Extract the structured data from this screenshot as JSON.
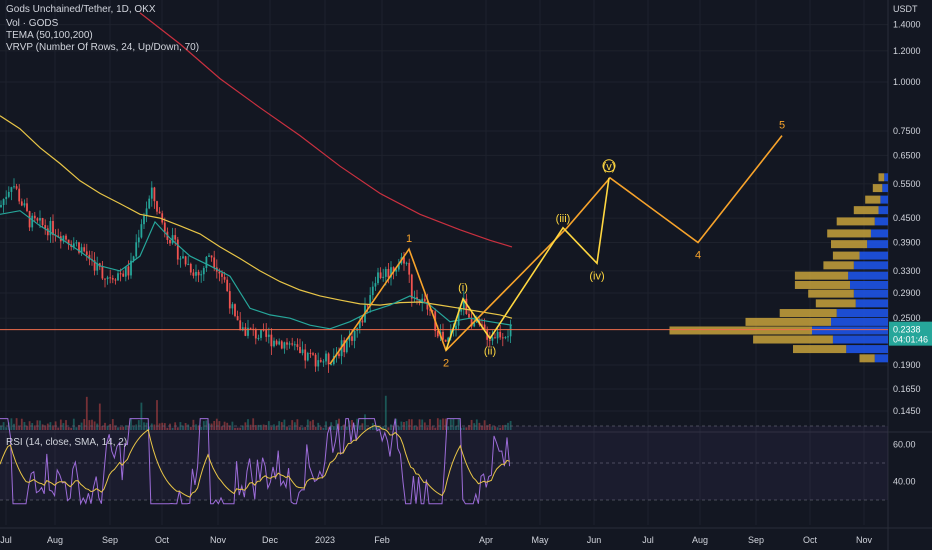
{
  "header": {
    "symbol_line": "Gods Unchained/Tether, 1D, OKX",
    "volume_label": "Vol · GODS",
    "tema_label": "TEMA (50,100,200)",
    "vrvp_label": "VRVP (Number Of Rows, 24, Up/Down, 70)",
    "rsi_label": "RSI (14, close, SMA, 14, 2)",
    "price_unit": "USDT"
  },
  "colors": {
    "background": "#131722",
    "grid": "#1e222d",
    "candle_up": "#26a69a",
    "candle_down": "#ef5350",
    "tema_fast": "#26a69a",
    "tema_mid": "#e8c547",
    "tema_slow": "#c9303f",
    "wave_primary": "#f7a32b",
    "wave_minor": "#ffd740",
    "price_line": "#ef6c4b",
    "rsi_line": "#9c6cd8",
    "rsi_sma": "#e8c547",
    "vp_up": "#1e53e5",
    "vp_down": "#c8a23b"
  },
  "chart_data": {
    "type": "candlestick",
    "price_axis": {
      "scale": "log",
      "ticks": [
        "1.4000",
        "1.2000",
        "1.0000",
        "0.7500",
        "0.6500",
        "0.5500",
        "0.4500",
        "0.3900",
        "0.3300",
        "0.2900",
        "0.2500",
        "0.1900",
        "0.1650",
        "0.1450"
      ],
      "current_price": "0.2338",
      "countdown": "04:01:46"
    },
    "time_axis": {
      "ticks": [
        "Jul",
        "Aug",
        "Sep",
        "Oct",
        "Nov",
        "Dec",
        "2023",
        "Feb",
        "Apr",
        "May",
        "Jun",
        "Jul",
        "Aug",
        "Sep",
        "Oct",
        "Nov"
      ]
    },
    "rsi_axis": {
      "ticks": [
        "60.00",
        "40.00"
      ]
    },
    "tema_fast": [
      [
        0,
        0.46
      ],
      [
        20,
        0.47
      ],
      [
        40,
        0.43
      ],
      [
        60,
        0.4
      ],
      [
        80,
        0.37
      ],
      [
        100,
        0.34
      ],
      [
        120,
        0.33
      ],
      [
        140,
        0.36
      ],
      [
        155,
        0.44
      ],
      [
        170,
        0.4
      ],
      [
        190,
        0.36
      ],
      [
        210,
        0.34
      ],
      [
        230,
        0.32
      ],
      [
        250,
        0.265
      ],
      [
        270,
        0.255
      ],
      [
        290,
        0.25
      ],
      [
        310,
        0.24
      ],
      [
        330,
        0.235
      ],
      [
        350,
        0.245
      ],
      [
        370,
        0.26
      ],
      [
        390,
        0.27
      ],
      [
        410,
        0.285
      ],
      [
        430,
        0.27
      ],
      [
        450,
        0.245
      ],
      [
        470,
        0.25
      ],
      [
        490,
        0.245
      ],
      [
        512,
        0.24
      ]
    ],
    "tema_mid": [
      [
        0,
        0.82
      ],
      [
        20,
        0.76
      ],
      [
        40,
        0.68
      ],
      [
        60,
        0.62
      ],
      [
        80,
        0.56
      ],
      [
        100,
        0.52
      ],
      [
        120,
        0.49
      ],
      [
        140,
        0.46
      ],
      [
        160,
        0.45
      ],
      [
        180,
        0.43
      ],
      [
        200,
        0.41
      ],
      [
        220,
        0.38
      ],
      [
        240,
        0.355
      ],
      [
        260,
        0.33
      ],
      [
        280,
        0.31
      ],
      [
        300,
        0.295
      ],
      [
        320,
        0.285
      ],
      [
        340,
        0.278
      ],
      [
        360,
        0.272
      ],
      [
        380,
        0.27
      ],
      [
        400,
        0.274
      ],
      [
        420,
        0.275
      ],
      [
        440,
        0.27
      ],
      [
        460,
        0.265
      ],
      [
        480,
        0.26
      ],
      [
        500,
        0.255
      ],
      [
        512,
        0.25
      ]
    ],
    "tema_slow": [
      [
        140,
        1.5
      ],
      [
        180,
        1.25
      ],
      [
        220,
        1.02
      ],
      [
        260,
        0.86
      ],
      [
        300,
        0.73
      ],
      [
        340,
        0.61
      ],
      [
        380,
        0.52
      ],
      [
        420,
        0.46
      ],
      [
        460,
        0.42
      ],
      [
        490,
        0.395
      ],
      [
        512,
        0.38
      ]
    ],
    "elliott_primary": [
      {
        "label": "",
        "x": 330,
        "y": 0.191
      },
      {
        "label": "1",
        "x": 409,
        "y": 0.375
      },
      {
        "label": "2",
        "x": 446,
        "y": 0.207
      },
      {
        "label": "",
        "x": 567,
        "y": 0.425
      },
      {
        "label": "",
        "x": 610,
        "y": 0.57
      },
      {
        "label": "4",
        "x": 698,
        "y": 0.39
      },
      {
        "label": "5",
        "x": 782,
        "y": 0.73
      }
    ],
    "elliott_minor": [
      {
        "label": "",
        "x": 446,
        "y": 0.207
      },
      {
        "label": "(i)",
        "x": 463,
        "y": 0.28
      },
      {
        "label": "(ii)",
        "x": 490,
        "y": 0.222
      },
      {
        "label": "(iii)",
        "x": 563,
        "y": 0.425
      },
      {
        "label": "(iv)",
        "x": 597,
        "y": 0.345
      },
      {
        "label": "(v)",
        "x": 609,
        "y": 0.57
      }
    ],
    "volume_profile": [
      {
        "price": 0.57,
        "up": 4,
        "down": 6
      },
      {
        "price": 0.535,
        "up": 6,
        "down": 10
      },
      {
        "price": 0.5,
        "up": 8,
        "down": 16
      },
      {
        "price": 0.47,
        "up": 10,
        "down": 26
      },
      {
        "price": 0.44,
        "up": 14,
        "down": 40
      },
      {
        "price": 0.41,
        "up": 18,
        "down": 46
      },
      {
        "price": 0.385,
        "up": 22,
        "down": 38
      },
      {
        "price": 0.36,
        "up": 30,
        "down": 28
      },
      {
        "price": 0.34,
        "up": 36,
        "down": 32
      },
      {
        "price": 0.32,
        "up": 42,
        "down": 56
      },
      {
        "price": 0.303,
        "up": 40,
        "down": 58
      },
      {
        "price": 0.288,
        "up": 36,
        "down": 48
      },
      {
        "price": 0.272,
        "up": 34,
        "down": 42
      },
      {
        "price": 0.257,
        "up": 54,
        "down": 60
      },
      {
        "price": 0.244,
        "up": 60,
        "down": 90
      },
      {
        "price": 0.232,
        "up": 80,
        "down": 150
      },
      {
        "price": 0.22,
        "up": 58,
        "down": 84
      },
      {
        "price": 0.208,
        "up": 44,
        "down": 56
      },
      {
        "price": 0.197,
        "up": 14,
        "down": 16
      }
    ]
  }
}
